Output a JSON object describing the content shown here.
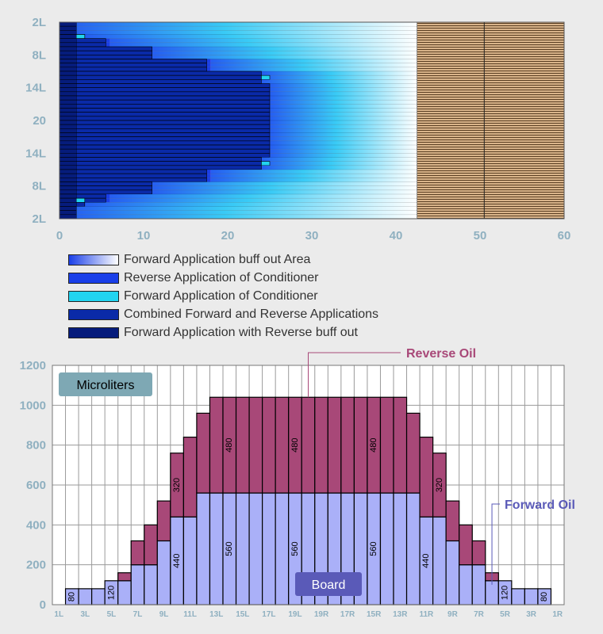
{
  "chart_data": [
    {
      "type": "heatmap",
      "ytick_labels": [
        "2L",
        "8L",
        "14L",
        "20",
        "14L",
        "8L",
        "2L"
      ],
      "xtick_labels": [
        "0",
        "10",
        "20",
        "30",
        "40",
        "50",
        "60"
      ],
      "xlim": [
        0,
        60
      ],
      "board_start_x": 42.5,
      "board_line_x": 50.5,
      "rows": 48,
      "row_extents": {
        "reverse_conditioner": [
          0,
          0,
          0,
          3,
          5.5,
          5.5,
          11,
          11,
          11,
          17.5,
          17.5,
          17.5,
          24,
          24,
          24,
          25,
          25,
          25,
          25,
          25,
          25,
          25,
          25,
          25,
          25,
          25,
          25,
          25,
          25,
          25,
          25,
          25,
          25,
          24,
          24,
          24,
          17.5,
          17.5,
          17.5,
          11,
          11,
          11,
          5.5,
          5.5,
          3,
          0,
          0,
          0
        ],
        "forward_conditioner": [
          2,
          2,
          2,
          3,
          0,
          0,
          0,
          0,
          0,
          0,
          0,
          0,
          0,
          25,
          0,
          0,
          0,
          0,
          0,
          0,
          0,
          0,
          0,
          0,
          0,
          0,
          0,
          0,
          0,
          0,
          0,
          0,
          0,
          0,
          25,
          0,
          0,
          0,
          0,
          0,
          0,
          0,
          0,
          3,
          2,
          2,
          2,
          2
        ],
        "buff_out_start": [
          1,
          1,
          1,
          3,
          6,
          6,
          11,
          11,
          11,
          18,
          18,
          18,
          24,
          24,
          24,
          25,
          25,
          25,
          25,
          25,
          25,
          25,
          25,
          25,
          25,
          25,
          25,
          25,
          25,
          25,
          25,
          25,
          25,
          24,
          24,
          24,
          18,
          18,
          18,
          11,
          11,
          11,
          6,
          6,
          3,
          1,
          1,
          1
        ]
      },
      "legend": [
        {
          "label": "Forward Application buff out Area",
          "color": "gradient"
        },
        {
          "label": "Reverse Application of Conditioner",
          "color": "#1a3fe8"
        },
        {
          "label": "Forward Application of Conditioner",
          "color": "#22d4f0"
        },
        {
          "label": "Combined Forward and Reverse Applications",
          "color": "#0a2aa8"
        },
        {
          "label": "Forward Application with Reverse buff out",
          "color": "#061c7c"
        }
      ]
    },
    {
      "type": "bar",
      "stacked": true,
      "categories": [
        "1L",
        "2L",
        "3L",
        "4L",
        "5L",
        "6L",
        "7L",
        "8L",
        "9L",
        "10L",
        "11L",
        "12L",
        "13L",
        "14L",
        "15L",
        "16L",
        "17L",
        "18L",
        "19L",
        "20",
        "19R",
        "18R",
        "17R",
        "16R",
        "15R",
        "14R",
        "13R",
        "12R",
        "11R",
        "10R",
        "9R",
        "8R",
        "7R",
        "6R",
        "5R",
        "4R",
        "3R",
        "2R",
        "1R"
      ],
      "xtick_labels": [
        "1L",
        "3L",
        "5L",
        "7L",
        "9L",
        "11L",
        "13L",
        "15L",
        "17L",
        "19L",
        "19R",
        "17R",
        "15R",
        "13R",
        "11R",
        "9R",
        "7R",
        "5R",
        "3R",
        "1R"
      ],
      "ylim": [
        0,
        1200
      ],
      "yticks": [
        0,
        200,
        400,
        600,
        800,
        1000,
        1200
      ],
      "series": [
        {
          "name": "Forward Oil",
          "color": "#aab0f8",
          "values": [
            0,
            80,
            80,
            80,
            120,
            120,
            200,
            200,
            320,
            440,
            440,
            560,
            560,
            560,
            560,
            560,
            560,
            560,
            560,
            560,
            560,
            560,
            560,
            560,
            560,
            560,
            560,
            560,
            440,
            440,
            320,
            200,
            200,
            120,
            120,
            80,
            80,
            80,
            0
          ]
        },
        {
          "name": "Reverse Oil",
          "color": "#a84878",
          "values": [
            0,
            0,
            0,
            0,
            0,
            40,
            120,
            200,
            200,
            320,
            400,
            400,
            480,
            480,
            480,
            480,
            480,
            480,
            480,
            480,
            480,
            480,
            480,
            480,
            480,
            480,
            480,
            400,
            400,
            320,
            200,
            200,
            120,
            40,
            0,
            0,
            0,
            0,
            0
          ]
        }
      ],
      "value_labels": [
        {
          "category": "2L",
          "text": "80"
        },
        {
          "category": "5L",
          "text": "120"
        },
        {
          "category": "10L",
          "text": "440"
        },
        {
          "category": "10L",
          "text": "320"
        },
        {
          "category": "14L",
          "text": "560"
        },
        {
          "category": "14L",
          "text": "480"
        },
        {
          "category": "19L",
          "text": "560"
        },
        {
          "category": "19L",
          "text": "480"
        },
        {
          "category": "15R",
          "text": "560"
        },
        {
          "category": "15R",
          "text": "480"
        },
        {
          "category": "11R",
          "text": "440"
        },
        {
          "category": "10R",
          "text": "320"
        },
        {
          "category": "5R",
          "text": "120"
        },
        {
          "category": "2R",
          "text": "80"
        }
      ],
      "label_box_text": "Microliters",
      "board_label": "Board",
      "callouts": {
        "reverse": "Reverse Oil",
        "forward": "Forward Oil"
      }
    }
  ]
}
